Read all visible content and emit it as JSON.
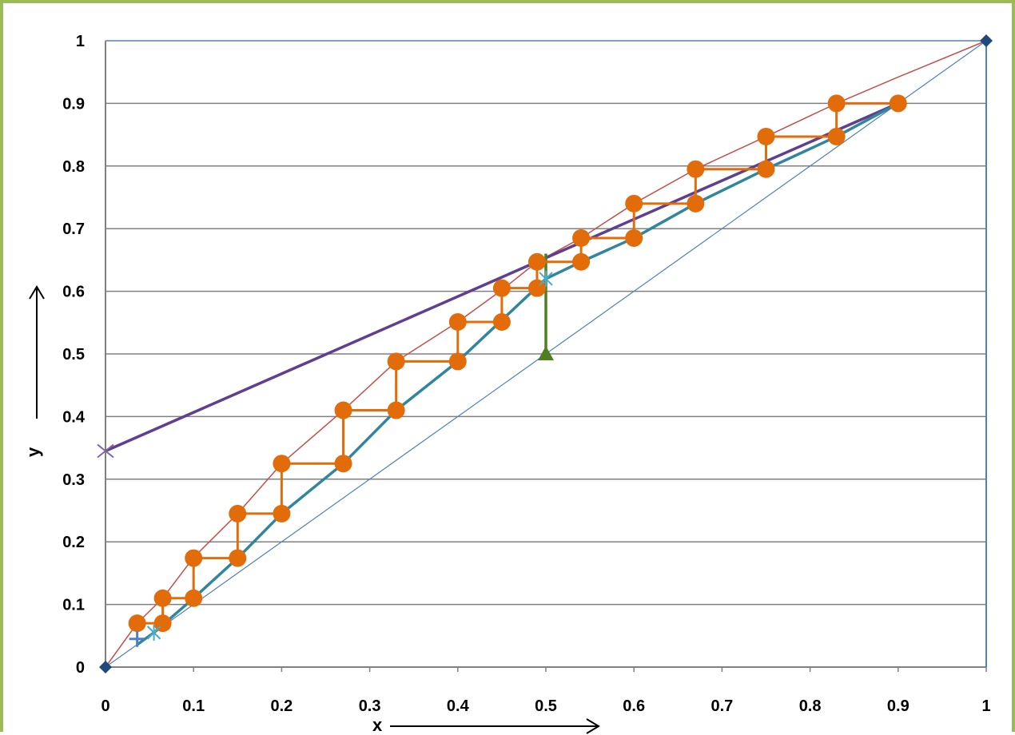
{
  "chart_data": {
    "type": "line",
    "title": "",
    "xlabel": "x",
    "ylabel": "y",
    "xlim": [
      0,
      1
    ],
    "ylim": [
      0,
      1
    ],
    "x_ticks": [
      "0",
      "0.1",
      "0.2",
      "0.3",
      "0.4",
      "0.5",
      "0.6",
      "0.7",
      "0.8",
      "0.9",
      "1"
    ],
    "y_ticks": [
      "0",
      "0.1",
      "0.2",
      "0.3",
      "0.4",
      "0.5",
      "0.6",
      "0.7",
      "0.8",
      "0.9",
      "1"
    ],
    "grid": "horizontal",
    "legend": "none",
    "series": [
      {
        "id": "diagonal",
        "color": "#4f81bd",
        "x": [
          0,
          0.9,
          1
        ],
        "y": [
          0,
          0.9,
          1
        ]
      },
      {
        "id": "equilibrium-curve",
        "color": "#c0504d",
        "x": [
          0,
          0.036,
          0.065,
          0.1,
          0.15,
          0.2,
          0.27,
          0.33,
          0.4,
          0.45,
          0.49,
          0.54,
          0.6,
          0.67,
          0.75,
          0.83,
          0.9,
          1
        ],
        "y": [
          0,
          0.07,
          0.11,
          0.175,
          0.245,
          0.325,
          0.41,
          0.488,
          0.551,
          0.602,
          0.647,
          0.685,
          0.74,
          0.795,
          0.847,
          0.9,
          0.942,
          1
        ]
      },
      {
        "id": "rectifying-line",
        "color": "#5f3f8f",
        "x": [
          0,
          0.9
        ],
        "y": [
          0.345,
          0.9
        ]
      },
      {
        "id": "stripping-line",
        "color": "#31859c",
        "x": [
          0.036,
          0.055,
          0.1,
          0.15,
          0.2,
          0.27,
          0.33,
          0.4,
          0.5,
          0.54,
          0.6,
          0.67,
          0.75,
          0.83,
          0.9
        ],
        "y": [
          0.036,
          0.055,
          0.11,
          0.174,
          0.245,
          0.325,
          0.41,
          0.488,
          0.62,
          0.647,
          0.685,
          0.74,
          0.795,
          0.847,
          0.9
        ]
      },
      {
        "id": "q-line",
        "color": "#4f7f1f",
        "x": [
          0.5,
          0.5
        ],
        "y": [
          0.5,
          0.66
        ]
      },
      {
        "id": "stages",
        "color": "#e36c0a",
        "x": [
          0.9,
          0.83,
          0.83,
          0.75,
          0.75,
          0.67,
          0.67,
          0.6,
          0.6,
          0.54,
          0.54,
          0.49,
          0.49,
          0.45,
          0.45,
          0.4,
          0.4,
          0.33,
          0.33,
          0.27,
          0.27,
          0.2,
          0.2,
          0.15,
          0.15,
          0.1,
          0.1,
          0.065,
          0.065,
          0.036
        ],
        "y": [
          0.9,
          0.9,
          0.847,
          0.847,
          0.795,
          0.795,
          0.74,
          0.74,
          0.685,
          0.685,
          0.647,
          0.647,
          0.605,
          0.605,
          0.551,
          0.551,
          0.488,
          0.488,
          0.41,
          0.41,
          0.325,
          0.325,
          0.245,
          0.245,
          0.174,
          0.174,
          0.11,
          0.11,
          0.07,
          0.07
        ]
      }
    ],
    "markers": [
      {
        "id": "origin-marker",
        "shape": "diamond",
        "color": "#1f497d",
        "x": 0,
        "y": 0
      },
      {
        "id": "top-right-marker",
        "shape": "diamond",
        "color": "#1f497d",
        "x": 1,
        "y": 1
      },
      {
        "id": "intercept-marker",
        "shape": "x",
        "color": "#8064a2",
        "x": 0,
        "y": 0.345
      },
      {
        "id": "feed-marker",
        "shape": "triangle",
        "color": "#4f7f1f",
        "x": 0.5,
        "y": 0.5
      },
      {
        "id": "stripping-star-1",
        "shape": "star",
        "color": "#4bacc6",
        "x": 0.5,
        "y": 0.62
      },
      {
        "id": "stripping-star-2",
        "shape": "star",
        "color": "#4bacc6",
        "x": 0.055,
        "y": 0.055
      },
      {
        "id": "bottoms-plus",
        "shape": "plus",
        "color": "#4f81bd",
        "x": 0.036,
        "y": 0.045
      }
    ]
  }
}
